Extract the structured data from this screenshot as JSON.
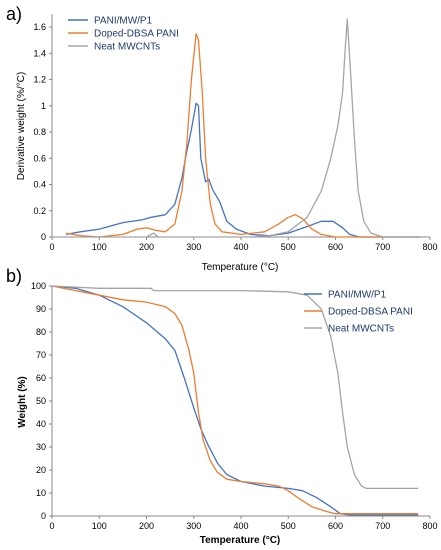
{
  "chart_data": [
    {
      "panel_label": "a)",
      "type": "line",
      "xlabel": "Temperature (°C)",
      "ylabel": "Derivative weight (%/°C)",
      "xlim": [
        0,
        800
      ],
      "ylim": [
        0,
        1.7
      ],
      "xticks": [
        "0",
        "100",
        "200",
        "300",
        "400",
        "500",
        "600",
        "700",
        "800"
      ],
      "yticks": [
        "0",
        "0.2",
        "0.4",
        "0.6",
        "0.8",
        "1",
        "1.2",
        "1.4",
        "1.6"
      ],
      "legend_position": "top-left",
      "grid": false,
      "series": [
        {
          "name": "PANI/MW/P1",
          "color": "#4472c4",
          "points": [
            [
              30,
              0.02
            ],
            [
              60,
              0.04
            ],
            [
              100,
              0.06
            ],
            [
              150,
              0.11
            ],
            [
              190,
              0.13
            ],
            [
              210,
              0.15
            ],
            [
              240,
              0.17
            ],
            [
              260,
              0.25
            ],
            [
              275,
              0.45
            ],
            [
              285,
              0.65
            ],
            [
              295,
              0.82
            ],
            [
              305,
              1.02
            ],
            [
              310,
              1.0
            ],
            [
              315,
              0.6
            ],
            [
              325,
              0.42
            ],
            [
              332,
              0.44
            ],
            [
              340,
              0.36
            ],
            [
              355,
              0.27
            ],
            [
              370,
              0.12
            ],
            [
              390,
              0.06
            ],
            [
              420,
              0.02
            ],
            [
              460,
              0.01
            ],
            [
              500,
              0.03
            ],
            [
              540,
              0.08
            ],
            [
              570,
              0.12
            ],
            [
              595,
              0.12
            ],
            [
              615,
              0.07
            ],
            [
              630,
              0.02
            ],
            [
              650,
              0.0
            ],
            [
              700,
              0.0
            ],
            [
              780,
              0.0
            ]
          ]
        },
        {
          "name": "Doped-DBSA PANI",
          "color": "#ed7d31",
          "points": [
            [
              30,
              0.03
            ],
            [
              60,
              0.01
            ],
            [
              100,
              0.0
            ],
            [
              150,
              0.02
            ],
            [
              180,
              0.06
            ],
            [
              200,
              0.07
            ],
            [
              220,
              0.05
            ],
            [
              240,
              0.04
            ],
            [
              260,
              0.1
            ],
            [
              275,
              0.35
            ],
            [
              285,
              0.7
            ],
            [
              295,
              1.2
            ],
            [
              305,
              1.55
            ],
            [
              310,
              1.5
            ],
            [
              318,
              1.1
            ],
            [
              325,
              0.6
            ],
            [
              335,
              0.25
            ],
            [
              345,
              0.1
            ],
            [
              360,
              0.04
            ],
            [
              400,
              0.02
            ],
            [
              450,
              0.04
            ],
            [
              480,
              0.1
            ],
            [
              500,
              0.15
            ],
            [
              515,
              0.17
            ],
            [
              530,
              0.14
            ],
            [
              550,
              0.06
            ],
            [
              570,
              0.02
            ],
            [
              600,
              0.0
            ],
            [
              700,
              0.0
            ],
            [
              780,
              0.0
            ]
          ]
        },
        {
          "name": "Neat MWCNTs",
          "color": "#a5a5a5",
          "points": [
            [
              30,
              0.0
            ],
            [
              200,
              0.0
            ],
            [
              215,
              0.03
            ],
            [
              225,
              0.0
            ],
            [
              300,
              0.0
            ],
            [
              420,
              0.0
            ],
            [
              460,
              0.01
            ],
            [
              500,
              0.04
            ],
            [
              540,
              0.15
            ],
            [
              570,
              0.35
            ],
            [
              590,
              0.6
            ],
            [
              605,
              0.85
            ],
            [
              615,
              1.1
            ],
            [
              620,
              1.4
            ],
            [
              625,
              1.66
            ],
            [
              632,
              1.25
            ],
            [
              640,
              0.75
            ],
            [
              648,
              0.35
            ],
            [
              660,
              0.12
            ],
            [
              675,
              0.03
            ],
            [
              700,
              0.0
            ],
            [
              780,
              0.0
            ]
          ]
        }
      ]
    },
    {
      "panel_label": "b)",
      "type": "line",
      "xlabel": "Temperature (°C)",
      "ylabel": "Weight (%)",
      "xlim": [
        0,
        800
      ],
      "ylim": [
        0,
        100
      ],
      "xticks": [
        "0",
        "100",
        "200",
        "300",
        "400",
        "500",
        "600",
        "700",
        "800"
      ],
      "yticks": [
        "0",
        "10",
        "20",
        "30",
        "40",
        "50",
        "60",
        "70",
        "80",
        "90",
        "100"
      ],
      "legend_position": "top-right",
      "grid": false,
      "series": [
        {
          "name": "PANI/MW/P1",
          "color": "#4472c4",
          "points": [
            [
              0,
              100
            ],
            [
              50,
              99
            ],
            [
              100,
              96
            ],
            [
              150,
              91
            ],
            [
              200,
              84
            ],
            [
              240,
              77
            ],
            [
              260,
              72
            ],
            [
              280,
              60
            ],
            [
              300,
              47
            ],
            [
              315,
              38
            ],
            [
              330,
              31
            ],
            [
              350,
              23
            ],
            [
              370,
              18
            ],
            [
              400,
              15
            ],
            [
              450,
              13
            ],
            [
              500,
              12
            ],
            [
              530,
              11
            ],
            [
              560,
              8
            ],
            [
              590,
              4
            ],
            [
              610,
              1
            ],
            [
              630,
              0.5
            ],
            [
              700,
              0.5
            ],
            [
              775,
              0.5
            ]
          ]
        },
        {
          "name": "Doped-DBSA PANI",
          "color": "#ed7d31",
          "points": [
            [
              0,
              100
            ],
            [
              50,
              98
            ],
            [
              100,
              96
            ],
            [
              150,
              94
            ],
            [
              200,
              93
            ],
            [
              240,
              91
            ],
            [
              260,
              88
            ],
            [
              275,
              83
            ],
            [
              290,
              72
            ],
            [
              300,
              62
            ],
            [
              310,
              45
            ],
            [
              320,
              33
            ],
            [
              335,
              24
            ],
            [
              350,
              19
            ],
            [
              370,
              16
            ],
            [
              400,
              15
            ],
            [
              450,
              14
            ],
            [
              480,
              13
            ],
            [
              500,
              11
            ],
            [
              520,
              8
            ],
            [
              550,
              4
            ],
            [
              580,
              2
            ],
            [
              600,
              1
            ],
            [
              700,
              1
            ],
            [
              775,
              1
            ]
          ]
        },
        {
          "name": "Neat MWCNTs",
          "color": "#a5a5a5",
          "points": [
            [
              0,
              100
            ],
            [
              100,
              99
            ],
            [
              200,
              99
            ],
            [
              210,
              99
            ],
            [
              215,
              98
            ],
            [
              230,
              98
            ],
            [
              300,
              98
            ],
            [
              400,
              98
            ],
            [
              500,
              97.5
            ],
            [
              540,
              96
            ],
            [
              570,
              90
            ],
            [
              590,
              78
            ],
            [
              605,
              62
            ],
            [
              615,
              45
            ],
            [
              625,
              30
            ],
            [
              640,
              18
            ],
            [
              655,
              13
            ],
            [
              665,
              12
            ],
            [
              700,
              12
            ],
            [
              775,
              12
            ]
          ]
        }
      ]
    }
  ]
}
